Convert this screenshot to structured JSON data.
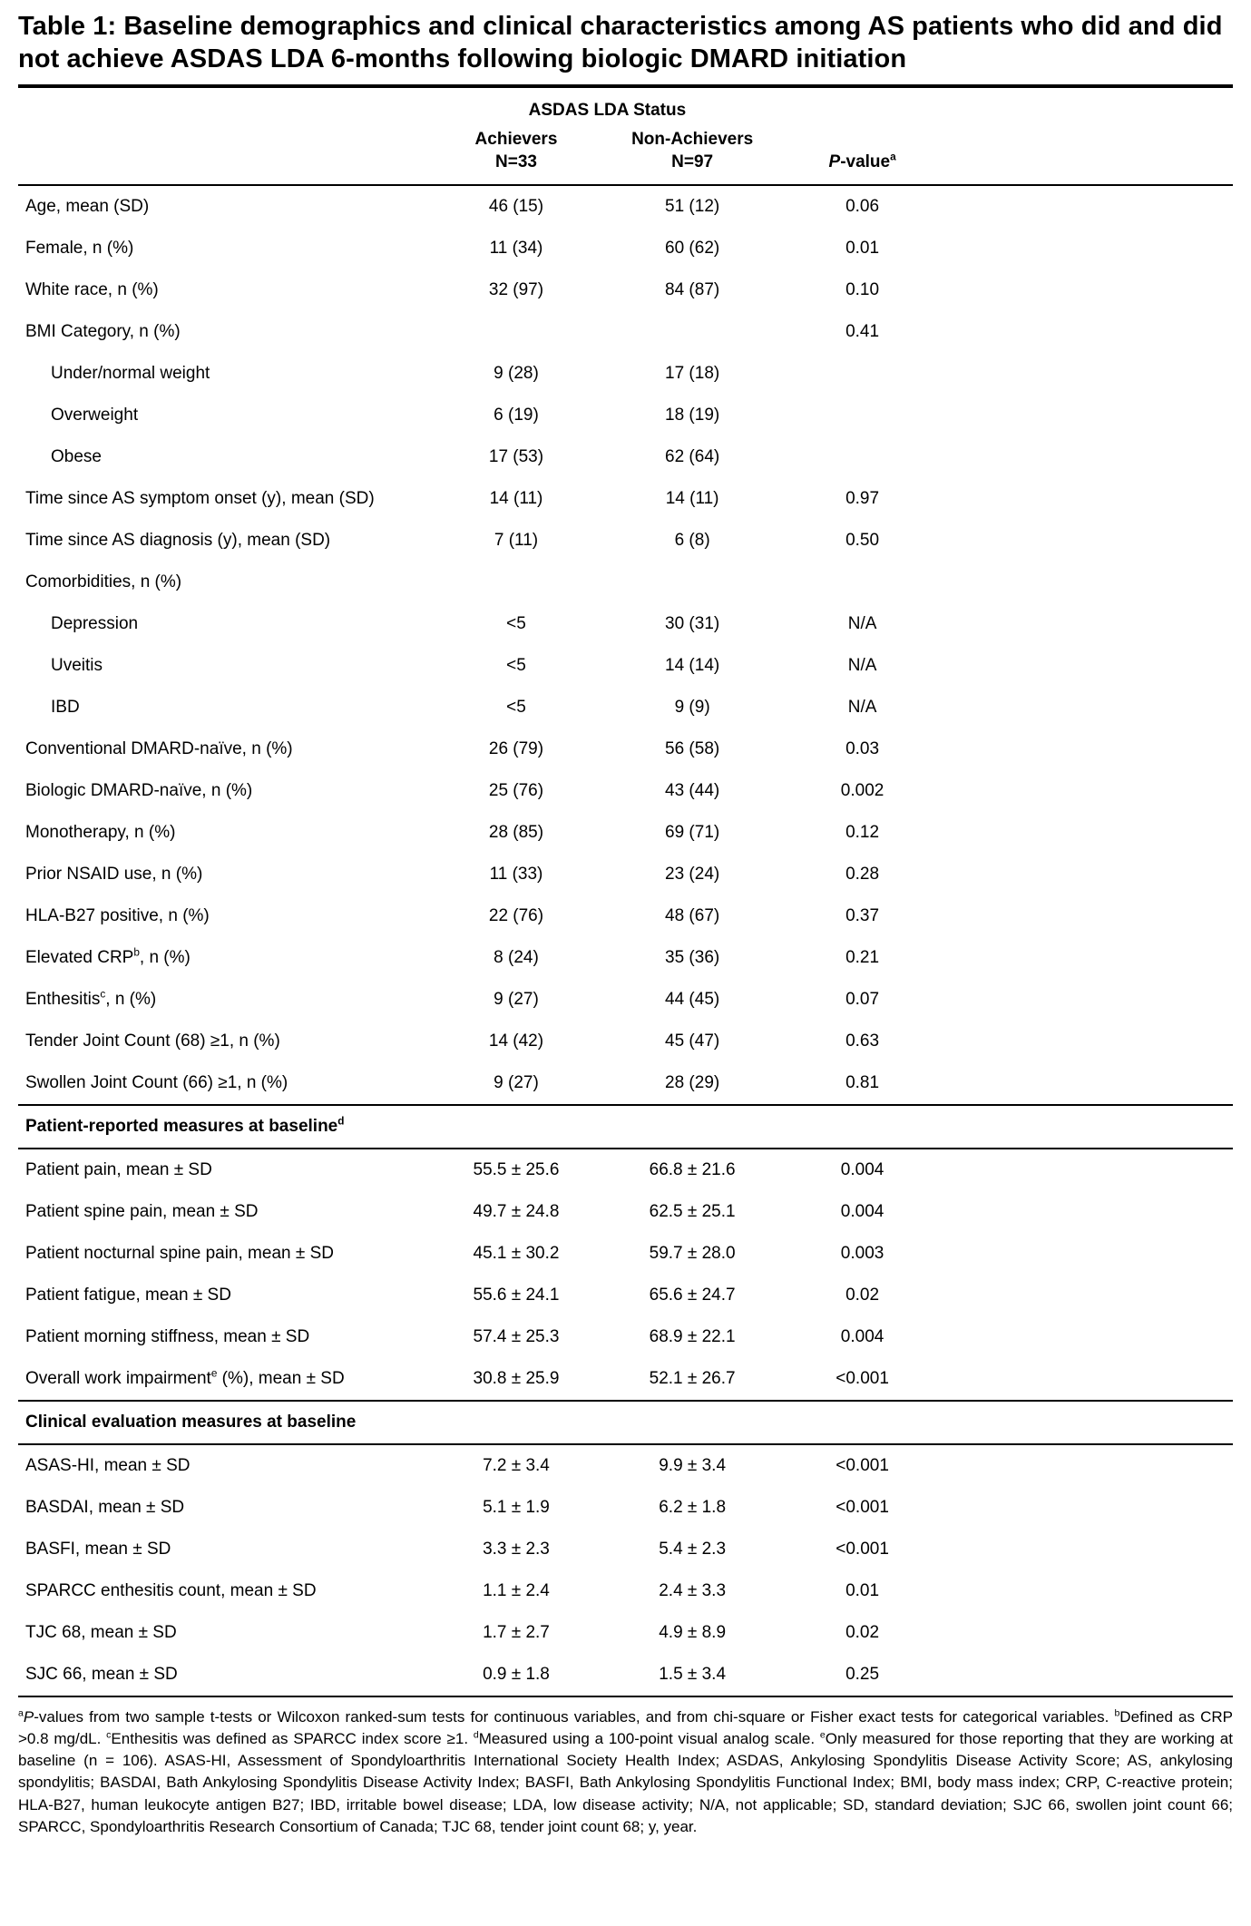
{
  "title": "Table 1: Baseline demographics and clinical characteristics among AS patients who did and did not achieve ASDAS LDA 6-months following biologic DMARD initiation",
  "table": {
    "group_header": "ASDAS LDA Status",
    "columns": {
      "achievers": {
        "label": "Achievers",
        "sub": "N=33"
      },
      "non_achievers": {
        "label": "Non-Achievers",
        "sub": "N=97"
      },
      "p_value": {
        "italic": "P",
        "rest": "-value",
        "sup": "a"
      }
    },
    "sections": [
      {
        "header": null,
        "rows": [
          {
            "label": "Age, mean (SD)",
            "achievers": "46 (15)",
            "non_achievers": "51 (12)",
            "p": "0.06"
          },
          {
            "label": "Female, n (%)",
            "achievers": "11 (34)",
            "non_achievers": "60 (62)",
            "p": "0.01"
          },
          {
            "label": "White race, n (%)",
            "achievers": "32 (97)",
            "non_achievers": "84 (87)",
            "p": "0.10"
          },
          {
            "label": "BMI Category, n (%)",
            "achievers": "",
            "non_achievers": "",
            "p": "0.41"
          },
          {
            "label": "Under/normal weight",
            "indent": true,
            "achievers": "9 (28)",
            "non_achievers": "17 (18)",
            "p": ""
          },
          {
            "label": "Overweight",
            "indent": true,
            "achievers": "6 (19)",
            "non_achievers": "18 (19)",
            "p": ""
          },
          {
            "label": "Obese",
            "indent": true,
            "achievers": "17 (53)",
            "non_achievers": "62 (64)",
            "p": ""
          },
          {
            "label": "Time since AS symptom onset (y), mean (SD)",
            "achievers": "14 (11)",
            "non_achievers": "14 (11)",
            "p": "0.97"
          },
          {
            "label": "Time since AS diagnosis (y), mean (SD)",
            "achievers": "7 (11)",
            "non_achievers": "6 (8)",
            "p": "0.50"
          },
          {
            "label": "Comorbidities, n (%)",
            "achievers": "",
            "non_achievers": "",
            "p": ""
          },
          {
            "label": "Depression",
            "indent": true,
            "achievers": "<5",
            "non_achievers": "30 (31)",
            "p": "N/A"
          },
          {
            "label": "Uveitis",
            "indent": true,
            "achievers": "<5",
            "non_achievers": "14 (14)",
            "p": "N/A"
          },
          {
            "label": "IBD",
            "indent": true,
            "achievers": "<5",
            "non_achievers": "9 (9)",
            "p": "N/A"
          },
          {
            "label": "Conventional DMARD-naïve, n (%)",
            "achievers": "26 (79)",
            "non_achievers": "56 (58)",
            "p": "0.03"
          },
          {
            "label": "Biologic DMARD-naïve, n (%)",
            "achievers": "25 (76)",
            "non_achievers": "43 (44)",
            "p": "0.002"
          },
          {
            "label": "Monotherapy, n (%)",
            "achievers": "28 (85)",
            "non_achievers": "69 (71)",
            "p": "0.12"
          },
          {
            "label": "Prior NSAID use, n (%)",
            "achievers": "11 (33)",
            "non_achievers": "23 (24)",
            "p": "0.28"
          },
          {
            "label": "HLA-B27 positive, n (%)",
            "achievers": "22 (76)",
            "non_achievers": "48 (67)",
            "p": "0.37"
          },
          {
            "label": "Elevated CRP",
            "sup": "b",
            "label_end": ", n (%)",
            "achievers": "8 (24)",
            "non_achievers": "35 (36)",
            "p": "0.21"
          },
          {
            "label": "Enthesitis",
            "sup": "c",
            "label_end": ", n (%)",
            "achievers": "9 (27)",
            "non_achievers": "44 (45)",
            "p": "0.07"
          },
          {
            "label": "Tender Joint Count (68) ≥1, n (%)",
            "achievers": "14 (42)",
            "non_achievers": "45 (47)",
            "p": "0.63"
          },
          {
            "label": "Swollen Joint Count (66) ≥1, n (%)",
            "achievers": "9 (27)",
            "non_achievers": "28 (29)",
            "p": "0.81"
          }
        ]
      },
      {
        "header": "Patient-reported measures at baseline",
        "header_sup": "d",
        "rows": [
          {
            "label": "Patient pain, mean ± SD",
            "achievers": "55.5 ± 25.6",
            "non_achievers": "66.8 ± 21.6",
            "p": "0.004"
          },
          {
            "label": "Patient spine pain, mean ± SD",
            "achievers": "49.7 ± 24.8",
            "non_achievers": "62.5 ± 25.1",
            "p": "0.004"
          },
          {
            "label": "Patient nocturnal spine pain, mean ± SD",
            "achievers": "45.1 ± 30.2",
            "non_achievers": "59.7 ± 28.0",
            "p": "0.003"
          },
          {
            "label": "Patient fatigue, mean ± SD",
            "achievers": "55.6 ± 24.1",
            "non_achievers": "65.6 ± 24.7",
            "p": "0.02"
          },
          {
            "label": "Patient morning stiffness, mean ± SD",
            "achievers": "57.4 ± 25.3",
            "non_achievers": "68.9 ± 22.1",
            "p": "0.004"
          },
          {
            "label": "Overall work impairment",
            "sup": "e",
            "label_end": " (%), mean ± SD",
            "achievers": "30.8 ± 25.9",
            "non_achievers": "52.1 ± 26.7",
            "p": "<0.001"
          }
        ]
      },
      {
        "header": "Clinical evaluation measures at baseline",
        "rows": [
          {
            "label": "ASAS-HI, mean ± SD",
            "achievers": "7.2 ± 3.4",
            "non_achievers": "9.9 ± 3.4",
            "p": "<0.001"
          },
          {
            "label": "BASDAI, mean ± SD",
            "achievers": "5.1 ± 1.9",
            "non_achievers": "6.2 ± 1.8",
            "p": "<0.001"
          },
          {
            "label": "BASFI, mean ± SD",
            "achievers": "3.3 ± 2.3",
            "non_achievers": "5.4 ± 2.3",
            "p": "<0.001"
          },
          {
            "label": "SPARCC enthesitis count, mean ± SD",
            "achievers": "1.1 ± 2.4",
            "non_achievers": "2.4 ± 3.3",
            "p": "0.01"
          },
          {
            "label": "TJC 68, mean ± SD",
            "achievers": "1.7 ± 2.7",
            "non_achievers": "4.9 ± 8.9",
            "p": "0.02"
          },
          {
            "label": "SJC 66, mean ± SD",
            "achievers": "0.9 ± 1.8",
            "non_achievers": "1.5 ± 3.4",
            "p": "0.25"
          }
        ]
      }
    ]
  },
  "footnotes": {
    "segments": [
      {
        "sup": "a",
        "italic": "P",
        "text": "-values from two sample t-tests or Wilcoxon ranked-sum tests for continuous variables, and from chi-square or Fisher exact tests for categorical variables."
      },
      {
        "sup": "b",
        "text": "Defined as CRP >0.8 mg/dL."
      },
      {
        "sup": "c",
        "text": "Enthesitis was defined as SPARCC index score ≥1."
      },
      {
        "sup": "d",
        "text": "Measured using a 100-point visual analog scale."
      },
      {
        "sup": "e",
        "text": "Only measured for those reporting that they are working at baseline (n = 106)."
      },
      {
        "sup": null,
        "text": "ASAS-HI, Assessment of Spondyloarthritis International Society Health Index; ASDAS, Ankylosing Spondylitis Disease Activity Score; AS, ankylosing spondylitis; BASDAI, Bath Ankylosing Spondylitis Disease Activity Index; BASFI, Bath Ankylosing Spondylitis Functional Index; BMI, body mass index; CRP, C-reactive protein; HLA-B27, human leukocyte antigen B27; IBD, irritable bowel disease; LDA, low disease activity; N/A, not applicable; SD, standard deviation; SJC 66, swollen joint count 66; SPARCC, Spondyloarthritis Research Consortium of Canada; TJC 68, tender joint count 68; y, year."
      }
    ]
  }
}
